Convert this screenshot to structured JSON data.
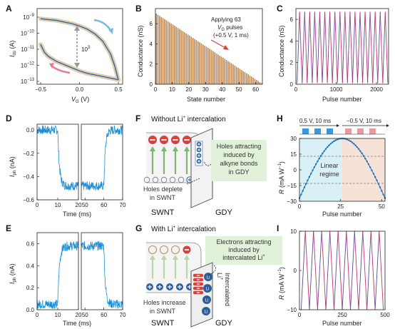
{
  "colors": {
    "blue": "#1b6fb5",
    "beige": "#e9c9a6",
    "pink": "#e6799a",
    "lightblue": "#7bb8de",
    "brown": "#c08a55",
    "red": "#d8413a",
    "darkblue": "#2c5f9c",
    "green": "#7cb86a",
    "purple": "#5b4a9c",
    "magenta": "#c4326e"
  },
  "panels": {
    "A": {
      "label": "A",
      "xlabel": "V",
      "xlabel_sub": "G",
      "xlabel_unit": " (V)",
      "ylabel": "I",
      "ylabel_sub": "ds",
      "ylabel_unit": " (A)",
      "yticks": [
        {
          "base": "10",
          "exp": "−9",
          "value": -9
        },
        {
          "base": "10",
          "exp": "−10",
          "value": -10
        },
        {
          "base": "10",
          "exp": "−11",
          "value": -11
        },
        {
          "base": "10",
          "exp": "−12",
          "value": -12
        },
        {
          "base": "10",
          "exp": "−13",
          "value": -13
        }
      ],
      "xticks": [
        "−0.5",
        "0.0",
        "0.5"
      ],
      "annotation_base": "10",
      "annotation_exp": "3"
    },
    "B": {
      "label": "B",
      "xlabel": "State number",
      "ylabel": "Conductance (nS)",
      "xticks": [
        "0",
        "10",
        "20",
        "30",
        "40",
        "50",
        "60"
      ],
      "yticks": [
        "0",
        "2",
        "4",
        "6"
      ],
      "annotation_line1": "Applying 63",
      "annotation_line2a": "V",
      "annotation_line2sub": "G",
      "annotation_line2b": " pulses",
      "annotation_line3": "(+0.5 V, 1 ms)"
    },
    "C": {
      "label": "C",
      "xlabel": "Pulse number",
      "ylabel": "Conductance (nS)",
      "xticks": [
        "0",
        "1000",
        "2000"
      ],
      "yticks": [
        "0",
        "2",
        "4",
        "6"
      ]
    },
    "D": {
      "label": "D",
      "xlabel": "Time (ms)",
      "ylabel": "I",
      "ylabel_sub": "ph",
      "ylabel_unit": " (nA)",
      "yticks": [
        "0.0",
        "−0.2",
        "−0.4",
        "−0.6"
      ],
      "xticks_left": [
        "0",
        "10",
        "20"
      ],
      "xticks_right": [
        "50",
        "60",
        "70"
      ]
    },
    "E": {
      "label": "E",
      "xlabel": "Time (ms)",
      "ylabel": "I",
      "ylabel_sub": "ph",
      "ylabel_unit": " (nA)",
      "yticks": [
        "0.0",
        "0.2",
        "0.4",
        "0.6"
      ],
      "xticks_left": [
        "0",
        "10",
        "20"
      ],
      "xticks_right": [
        "50",
        "60",
        "70"
      ]
    },
    "F": {
      "label": "F",
      "title_a": "Without Li",
      "title_sup": "+",
      "title_b": " intercalation",
      "note_line1": "Holes attracting",
      "note_line2": "induced by",
      "note_line3": "alkyne bonds",
      "note_line4": "in GDY",
      "holes_line1": "Holes deplete",
      "holes_line2": "in SWNT",
      "left_label": "SWNT",
      "right_label": "GDY"
    },
    "G": {
      "label": "G",
      "title_a": "With Li",
      "title_sup": "+",
      "title_b": " intercalation",
      "note_line1": "Electrons attracting",
      "note_line2": "induced by",
      "note_line3a": "intercalated Li",
      "note_line3sup": "+",
      "holes_line1": "Holes increase",
      "holes_line2": "in SWNT",
      "left_label": "SWNT",
      "right_label": "GDY",
      "vertical_label": "Intercalated",
      "vertical_label2": "Li",
      "vertical_label2sup": "+",
      "ion": "Li"
    },
    "H": {
      "label": "H",
      "pulse_pos": "0.5 V, 10 ms",
      "pulse_neg": "−0.5 V, 10 ms",
      "xlabel": "Pulse number",
      "ylabel": "R",
      "ylabel_unit": " (mA W",
      "ylabel_sup": "−1",
      "ylabel_end": ")",
      "yticks": [
        "30",
        "15",
        "0",
        "−15",
        "−30"
      ],
      "xticks": [
        "0",
        "25",
        "50"
      ],
      "regime_line1": "Linear",
      "regime_line2": "regime"
    },
    "I": {
      "label": "I",
      "xlabel": "Pulse number",
      "ylabel": "R",
      "ylabel_unit": " (mA W",
      "ylabel_sup": "−1",
      "ylabel_end": ")",
      "yticks": [
        "10",
        "0",
        "−10"
      ],
      "xticks": [
        "0",
        "250",
        "500"
      ]
    }
  },
  "chart_data": [
    {
      "panel": "A",
      "type": "line",
      "x_range": [
        -0.5,
        0.5
      ],
      "y_scale": "log",
      "series": [
        {
          "x": [
            -0.5,
            -0.4,
            -0.3,
            -0.2,
            -0.1,
            0.0,
            0.1,
            0.2,
            0.3,
            0.4,
            0.45,
            0.5
          ],
          "log10_y": [
            -9.1,
            -9.15,
            -9.2,
            -9.3,
            -9.4,
            -9.55,
            -9.75,
            -10.05,
            -10.5,
            -11.3,
            -12.0,
            -12.9
          ]
        },
        {
          "x": [
            -0.5,
            -0.45,
            -0.4,
            -0.3,
            -0.2,
            -0.1,
            0.0,
            0.1,
            0.2,
            0.3,
            0.4,
            0.45,
            0.5
          ],
          "log10_y": [
            -10.7,
            -11.2,
            -11.45,
            -11.75,
            -11.95,
            -12.15,
            -12.35,
            -12.5,
            -12.6,
            -12.7,
            -12.8,
            -12.85,
            -12.9
          ]
        }
      ]
    },
    {
      "panel": "B",
      "type": "bar",
      "categories_range": [
        0,
        63
      ],
      "values_first": 7.0,
      "values_last": 0.1,
      "ylim": [
        0,
        7.5
      ],
      "xlim": [
        0,
        64
      ]
    },
    {
      "panel": "C",
      "type": "line",
      "x_range": [
        0,
        2300
      ],
      "ylim": [
        0,
        7
      ],
      "cycles": 18,
      "y_low": 0.1,
      "y_high": 6.7
    },
    {
      "panel": "D",
      "type": "line",
      "xlim_left": [
        0,
        20
      ],
      "xlim_right": [
        48,
        70
      ],
      "ylim": [
        -0.6,
        0.05
      ],
      "levels": [
        0.0,
        -0.48
      ],
      "transitions_ms": [
        10,
        60
      ]
    },
    {
      "panel": "E",
      "type": "line",
      "xlim_left": [
        0,
        20
      ],
      "xlim_right": [
        48,
        70
      ],
      "ylim": [
        0,
        0.7
      ],
      "levels": [
        0.05,
        0.58
      ],
      "transitions_ms": [
        10,
        60
      ]
    },
    {
      "panel": "H",
      "type": "scatter",
      "xlim": [
        0,
        52
      ],
      "ylim": [
        -30,
        30
      ],
      "peak_x": 26,
      "y_start": -27,
      "y_peak": 30,
      "y_end": -27
    },
    {
      "panel": "I",
      "type": "line",
      "xlim": [
        0,
        500
      ],
      "ylim": [
        -10,
        10
      ],
      "cycles": 10,
      "y_low": -10,
      "y_high": 10
    }
  ]
}
